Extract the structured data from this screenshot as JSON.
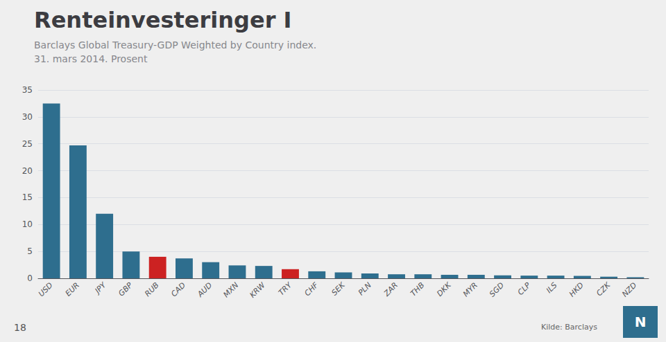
{
  "chart_data": {
    "type": "bar",
    "title": "Renteinvesteringer I",
    "subtitle": [
      "Barclays Global Treasury-GDP Weighted by Country index.",
      "31. mars 2014. Prosent"
    ],
    "categories": [
      "USD",
      "EUR",
      "JPY",
      "GBP",
      "RUB",
      "CAD",
      "AUD",
      "MXN",
      "KRW",
      "TRY",
      "CHF",
      "SEK",
      "PLN",
      "ZAR",
      "THB",
      "DKK",
      "MYR",
      "SGD",
      "CLP",
      "ILS",
      "HKD",
      "CZK",
      "NZD"
    ],
    "values": [
      32.5,
      24.7,
      12.0,
      5.0,
      4.0,
      3.7,
      3.0,
      2.4,
      2.3,
      1.7,
      1.3,
      1.1,
      0.9,
      0.75,
      0.75,
      0.65,
      0.65,
      0.55,
      0.5,
      0.5,
      0.45,
      0.3,
      0.2
    ],
    "colors": [
      "#2e6e8e",
      "#2e6e8e",
      "#2e6e8e",
      "#2e6e8e",
      "#cc2222",
      "#2e6e8e",
      "#2e6e8e",
      "#2e6e8e",
      "#2e6e8e",
      "#cc2222",
      "#2e6e8e",
      "#2e6e8e",
      "#2e6e8e",
      "#2e6e8e",
      "#2e6e8e",
      "#2e6e8e",
      "#2e6e8e",
      "#2e6e8e",
      "#2e6e8e",
      "#2e6e8e",
      "#2e6e8e",
      "#2e6e8e",
      "#2e6e8e"
    ],
    "ylim": [
      0,
      35
    ],
    "yticks": [
      0,
      5,
      10,
      15,
      20,
      25,
      30,
      35
    ],
    "grid": true,
    "annotations": [
      "18",
      "Kilde: Barclays",
      "N"
    ]
  }
}
